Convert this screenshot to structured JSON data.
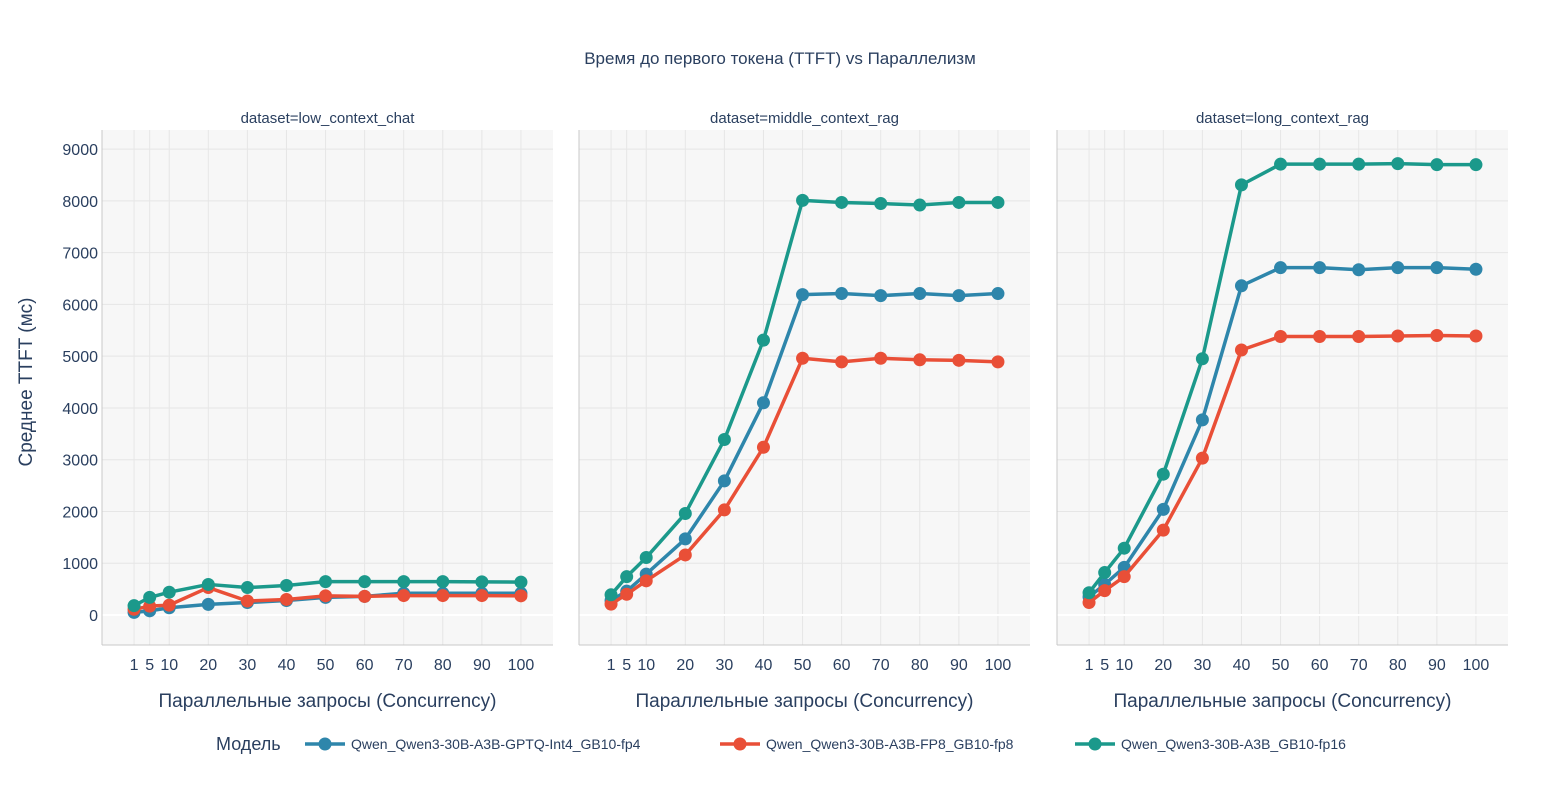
{
  "chart_data": {
    "type": "line",
    "title": "Время до первого токена (TTFT) vs Параллелизм",
    "ylabel": "Среднее TTFT (мс)",
    "xlabel": "Параллельные запросы (Concurrency)",
    "ylim": [
      -580,
      9370
    ],
    "xlim": [
      -7.2,
      108.2
    ],
    "yticks": [
      0,
      1000,
      2000,
      3000,
      4000,
      5000,
      6000,
      7000,
      8000,
      9000
    ],
    "x": [
      1,
      5,
      10,
      20,
      30,
      40,
      50,
      60,
      70,
      80,
      90,
      100
    ],
    "grid": true,
    "legend_title": "Модель",
    "legend_position": "bottom",
    "series_meta": [
      {
        "name": "Qwen_Qwen3-30B-A3B-GPTQ-Int4_GB10-fp4",
        "color": "#2E86AB"
      },
      {
        "name": "Qwen_Qwen3-30B-A3B-FP8_GB10-fp8",
        "color": "#E94F37"
      },
      {
        "name": "Qwen_Qwen3-30B-A3B_GB10-fp16",
        "color": "#1B998B"
      }
    ],
    "panels": [
      {
        "title": "dataset=low_context_chat",
        "series": [
          {
            "name": "Qwen_Qwen3-30B-A3B-GPTQ-Int4_GB10-fp4",
            "values": [
              50,
              80,
              140,
              205,
              240,
              280,
              340,
              360,
              420,
              420,
              420,
              420
            ]
          },
          {
            "name": "Qwen_Qwen3-30B-A3B-FP8_GB10-fp8",
            "values": [
              110,
              170,
              190,
              530,
              270,
              300,
              370,
              360,
              375,
              375,
              375,
              370
            ]
          },
          {
            "name": "Qwen_Qwen3-30B-A3B_GB10-fp16",
            "values": [
              180,
              340,
              440,
              590,
              530,
              570,
              645,
              645,
              645,
              645,
              640,
              635
            ]
          }
        ]
      },
      {
        "title": "dataset=middle_context_rag",
        "series": [
          {
            "name": "Qwen_Qwen3-30B-A3B-GPTQ-Int4_GB10-fp4",
            "values": [
              280,
              460,
              790,
              1470,
              2590,
              4100,
              6190,
              6210,
              6170,
              6210,
              6170,
              6210
            ]
          },
          {
            "name": "Qwen_Qwen3-30B-A3B-FP8_GB10-fp8",
            "values": [
              210,
              400,
              660,
              1160,
              2030,
              3240,
              4960,
              4890,
              4960,
              4930,
              4920,
              4890
            ]
          },
          {
            "name": "Qwen_Qwen3-30B-A3B_GB10-fp16",
            "values": [
              390,
              740,
              1110,
              1960,
              3390,
              5310,
              8010,
              7970,
              7950,
              7920,
              7970,
              7970
            ]
          }
        ]
      },
      {
        "title": "dataset=long_context_rag",
        "series": [
          {
            "name": "Qwen_Qwen3-30B-A3B-GPTQ-Int4_GB10-fp4",
            "values": [
              350,
              590,
              920,
              2040,
              3770,
              6360,
              6710,
              6710,
              6670,
              6710,
              6710,
              6680
            ]
          },
          {
            "name": "Qwen_Qwen3-30B-A3B-FP8_GB10-fp8",
            "values": [
              240,
              470,
              740,
              1640,
              3030,
              5120,
              5380,
              5380,
              5380,
              5390,
              5400,
              5390
            ]
          },
          {
            "name": "Qwen_Qwen3-30B-A3B_GB10-fp16",
            "values": [
              430,
              820,
              1290,
              2720,
              4950,
              8310,
              8710,
              8710,
              8710,
              8720,
              8700,
              8700
            ]
          }
        ]
      }
    ]
  }
}
